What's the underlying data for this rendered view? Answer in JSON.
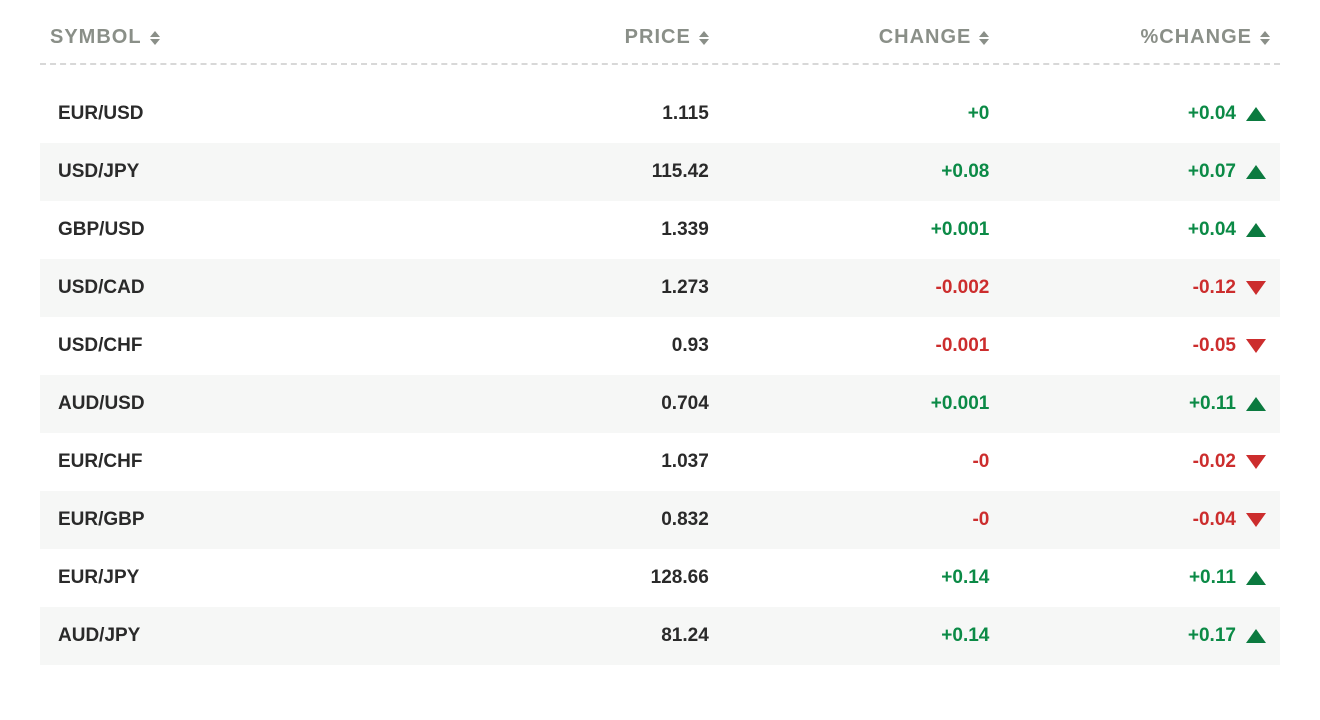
{
  "table": {
    "type": "table",
    "background_color": "#ffffff",
    "alt_row_color": "#f6f7f6",
    "header_text_color": "#8a8f88",
    "body_text_color": "#2a2a2a",
    "positive_color": "#0b8a46",
    "negative_color": "#cc2d2d",
    "arrow_up_color": "#0b7a3f",
    "arrow_down_color": "#cc2d2d",
    "divider_color": "#d8d8d8",
    "header_fontsize": 20,
    "body_fontsize": 19,
    "columns": [
      {
        "key": "symbol",
        "label": "SYMBOL",
        "align": "left",
        "width_pct": 36,
        "sortable": true
      },
      {
        "key": "price",
        "label": "PRICE",
        "align": "right",
        "width_pct": 18,
        "sortable": true
      },
      {
        "key": "change",
        "label": "CHANGE",
        "align": "right",
        "width_pct": 23,
        "sortable": true
      },
      {
        "key": "pct",
        "label": "%CHANGE",
        "align": "right",
        "width_pct": 23,
        "sortable": true
      }
    ],
    "rows": [
      {
        "symbol": "EUR/USD",
        "price": "1.115",
        "change": "+0",
        "pct": "+0.04",
        "direction": "up"
      },
      {
        "symbol": "USD/JPY",
        "price": "115.42",
        "change": "+0.08",
        "pct": "+0.07",
        "direction": "up"
      },
      {
        "symbol": "GBP/USD",
        "price": "1.339",
        "change": "+0.001",
        "pct": "+0.04",
        "direction": "up"
      },
      {
        "symbol": "USD/CAD",
        "price": "1.273",
        "change": "-0.002",
        "pct": "-0.12",
        "direction": "down"
      },
      {
        "symbol": "USD/CHF",
        "price": "0.93",
        "change": "-0.001",
        "pct": "-0.05",
        "direction": "down"
      },
      {
        "symbol": "AUD/USD",
        "price": "0.704",
        "change": "+0.001",
        "pct": "+0.11",
        "direction": "up"
      },
      {
        "symbol": "EUR/CHF",
        "price": "1.037",
        "change": "-0",
        "pct": "-0.02",
        "direction": "down"
      },
      {
        "symbol": "EUR/GBP",
        "price": "0.832",
        "change": "-0",
        "pct": "-0.04",
        "direction": "down"
      },
      {
        "symbol": "EUR/JPY",
        "price": "128.66",
        "change": "+0.14",
        "pct": "+0.11",
        "direction": "up"
      },
      {
        "symbol": "AUD/JPY",
        "price": "81.24",
        "change": "+0.14",
        "pct": "+0.17",
        "direction": "up"
      }
    ]
  }
}
